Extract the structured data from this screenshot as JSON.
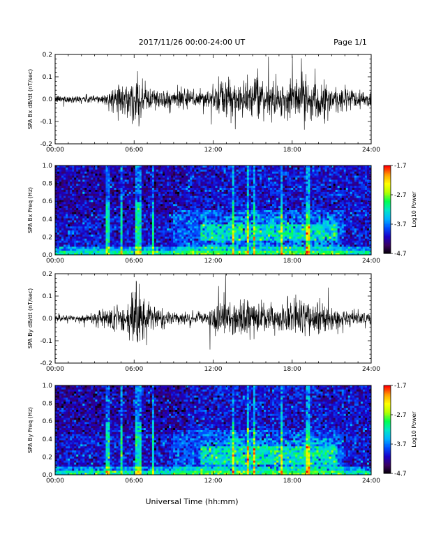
{
  "header": {
    "title": "2017/11/26  00:00-24:00 UT",
    "page": "Page 1/1"
  },
  "footer": {
    "xlabel": "Universal Time (hh:mm)"
  },
  "colorbar": {
    "title": "Log10 Power",
    "ticks": [
      "-1.7",
      "-2.7",
      "-3.7",
      "-4.7"
    ],
    "range": [
      -4.7,
      -1.7
    ],
    "colormap": [
      "#000000",
      "#3a0060",
      "#1a00c8",
      "#0050ff",
      "#00b4ff",
      "#00e6c8",
      "#00ff50",
      "#b4ff00",
      "#ffff00",
      "#ffa000",
      "#ff0000"
    ]
  },
  "chart_data": [
    {
      "type": "line",
      "ylabel": "SPA Bx dB/dt (nT/sec)",
      "ylim": [
        -0.2,
        0.2
      ],
      "yticks": [
        "0.2",
        "0.1",
        "0.0",
        "-0.1",
        "-0.2"
      ],
      "xticks": [
        "00:00",
        "06:00",
        "12:00",
        "18:00",
        "24:00"
      ],
      "xlim_hours": [
        0,
        24
      ],
      "series": [
        {
          "values_note_free": true,
          "envelope_hours": [
            0,
            2,
            4,
            4.8,
            5.2,
            6,
            6.4,
            7,
            8,
            10,
            12,
            13,
            14,
            15,
            16,
            17,
            18,
            19,
            20,
            21,
            22,
            23,
            24
          ],
          "envelope_amp": [
            0.02,
            0.02,
            0.03,
            0.09,
            0.07,
            0.1,
            0.12,
            0.07,
            0.05,
            0.05,
            0.06,
            0.11,
            0.09,
            0.09,
            0.1,
            0.08,
            0.1,
            0.13,
            0.09,
            0.08,
            0.07,
            0.05,
            0.04
          ]
        }
      ]
    },
    {
      "type": "heatmap",
      "ylabel": "SPA Bx Freq (Hz)",
      "ylim": [
        0.0,
        1.0
      ],
      "yticks": [
        "1.0",
        "0.8",
        "0.6",
        "0.4",
        "0.2",
        "0.0"
      ],
      "xticks": [
        "00:00",
        "06:00",
        "12:00",
        "18:00",
        "24:00"
      ],
      "zlim": [
        -4.7,
        -1.7
      ],
      "enhanced_band": {
        "hours": [
          11,
          21.5
        ],
        "freq_hz": [
          0.15,
          0.35
        ],
        "peak_log_power": -2.6
      }
    },
    {
      "type": "line",
      "ylabel": "SPA By dB/dt (nT/sec)",
      "ylim": [
        -0.2,
        0.2
      ],
      "yticks": [
        "0.2",
        "0.1",
        "0.0",
        "-0.1",
        "-0.2"
      ],
      "xticks": [
        "00:00",
        "06:00",
        "12:00",
        "18:00",
        "24:00"
      ],
      "xlim_hours": [
        0,
        24
      ],
      "series": [
        {
          "envelope_hours": [
            0,
            2,
            3.5,
            4.8,
            5.3,
            6,
            6.5,
            7,
            8,
            10,
            11.5,
            12.2,
            13,
            14,
            15,
            16,
            17,
            18,
            18.8,
            20,
            21,
            22,
            24
          ],
          "envelope_amp": [
            0.02,
            0.02,
            0.04,
            0.09,
            0.06,
            0.14,
            0.16,
            0.07,
            0.04,
            0.03,
            0.03,
            0.09,
            0.1,
            0.09,
            0.08,
            0.07,
            0.08,
            0.09,
            0.12,
            0.08,
            0.06,
            0.04,
            0.03
          ]
        }
      ]
    },
    {
      "type": "heatmap",
      "ylabel": "SPA By Freq (Hz)",
      "ylim": [
        0.0,
        1.0
      ],
      "yticks": [
        "1.0",
        "0.8",
        "0.6",
        "0.4",
        "0.2",
        "0.0"
      ],
      "xticks": [
        "00:00",
        "06:00",
        "12:00",
        "18:00",
        "24:00"
      ],
      "zlim": [
        -4.7,
        -1.7
      ],
      "enhanced_band": {
        "hours": [
          11,
          21.5
        ],
        "freq_hz": [
          0.12,
          0.32
        ],
        "peak_log_power": -2.5
      }
    }
  ]
}
